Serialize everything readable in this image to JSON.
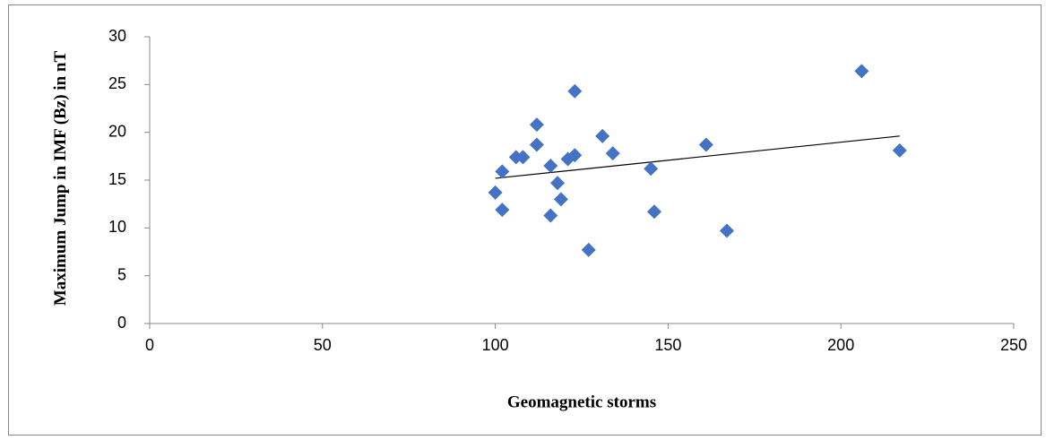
{
  "chart_data": {
    "type": "scatter",
    "x_label": "Geomagnetic storms",
    "y_label": "Maximum Jump in IMF (Bz) in nT",
    "series": [
      {
        "color": "#4472c4",
        "x": [
          100,
          102,
          102,
          106,
          108,
          112,
          112,
          116,
          116,
          118,
          119,
          121,
          123,
          123,
          127,
          131,
          134,
          145,
          146,
          161,
          167,
          206,
          217
        ],
        "values": [
          13.7,
          11.9,
          15.9,
          17.4,
          17.4,
          20.8,
          18.7,
          16.5,
          11.3,
          14.7,
          13.0,
          17.2,
          24.3,
          17.6,
          7.7,
          19.6,
          17.8,
          16.2,
          11.7,
          18.7,
          9.7,
          26.4,
          18.1
        ]
      }
    ],
    "trendline": true,
    "xlim": [
      0,
      250
    ],
    "xticks": [
      0,
      50,
      100,
      150,
      200,
      250
    ],
    "ylim": [
      0,
      30
    ],
    "yticks": [
      0,
      5,
      10,
      15,
      20,
      25,
      30
    ]
  }
}
